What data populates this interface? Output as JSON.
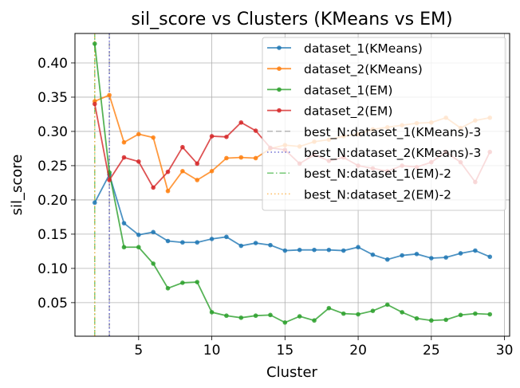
{
  "chart_data": {
    "type": "line",
    "title": "sil_score vs Clusters (KMeans vs EM)",
    "xlabel": "Cluster",
    "ylabel": "sil_score",
    "xlim": [
      0.65,
      30.35
    ],
    "ylim": [
      0.001,
      0.443
    ],
    "xticks": [
      5,
      10,
      15,
      20,
      25,
      30
    ],
    "yticks": [
      0.05,
      0.1,
      0.15,
      0.2,
      0.25,
      0.3,
      0.35,
      0.4
    ],
    "ytick_labels": [
      "0.05",
      "0.10",
      "0.15",
      "0.20",
      "0.25",
      "0.30",
      "0.35",
      "0.40"
    ],
    "grid": true,
    "legend_position": "top-right",
    "x": [
      2,
      3,
      4,
      5,
      6,
      7,
      8,
      9,
      10,
      11,
      12,
      13,
      14,
      15,
      16,
      17,
      18,
      19,
      20,
      21,
      22,
      23,
      24,
      25,
      26,
      27,
      28,
      29
    ],
    "series": [
      {
        "name": "dataset_1(KMeans)",
        "color": "#1f77b4",
        "values": [
          0.196,
          0.237,
          0.166,
          0.149,
          0.153,
          0.14,
          0.138,
          0.138,
          0.143,
          0.146,
          0.133,
          0.137,
          0.134,
          0.126,
          0.127,
          0.127,
          0.127,
          0.126,
          0.131,
          0.12,
          0.113,
          0.119,
          0.121,
          0.115,
          0.116,
          0.122,
          0.126,
          0.117
        ]
      },
      {
        "name": "dataset_2(KMeans)",
        "color": "#ff7f0e",
        "values": [
          0.344,
          0.353,
          0.284,
          0.296,
          0.291,
          0.213,
          0.242,
          0.229,
          0.242,
          0.261,
          0.262,
          0.261,
          0.275,
          0.28,
          0.278,
          0.285,
          0.288,
          0.293,
          0.296,
          0.303,
          0.306,
          0.309,
          0.312,
          0.313,
          0.32,
          0.305,
          0.316,
          0.32
        ]
      },
      {
        "name": "dataset_1(EM)",
        "color": "#2ca02c",
        "values": [
          0.428,
          0.24,
          0.131,
          0.131,
          0.107,
          0.071,
          0.079,
          0.08,
          0.036,
          0.031,
          0.028,
          0.031,
          0.032,
          0.021,
          0.03,
          0.024,
          0.042,
          0.034,
          0.033,
          0.038,
          0.047,
          0.036,
          0.027,
          0.024,
          0.025,
          0.032,
          0.034,
          0.033
        ]
      },
      {
        "name": "dataset_2(EM)",
        "color": "#d62728",
        "values": [
          0.34,
          0.229,
          0.262,
          0.256,
          0.218,
          0.241,
          0.277,
          0.253,
          0.293,
          0.292,
          0.313,
          0.301,
          0.276,
          0.273,
          0.253,
          0.266,
          0.257,
          0.262,
          0.25,
          0.246,
          0.242,
          0.25,
          0.248,
          0.255,
          0.27,
          0.255,
          0.226,
          0.27
        ]
      }
    ],
    "vlines": [
      {
        "name": "best_N:dataset_1(KMeans)-3",
        "x": 3,
        "color": "#aaaaaa",
        "style": "dashed"
      },
      {
        "name": "best_N:dataset_2(KMeans)-3",
        "x": 3,
        "color": "#5555cc",
        "style": "dotted"
      },
      {
        "name": "best_N:dataset_1(EM)-2",
        "x": 2,
        "color": "#5fbf5f",
        "style": "dashdot"
      },
      {
        "name": "best_N:dataset_2(EM)-2",
        "x": 2,
        "color": "#ffb347",
        "style": "dotted"
      }
    ]
  }
}
